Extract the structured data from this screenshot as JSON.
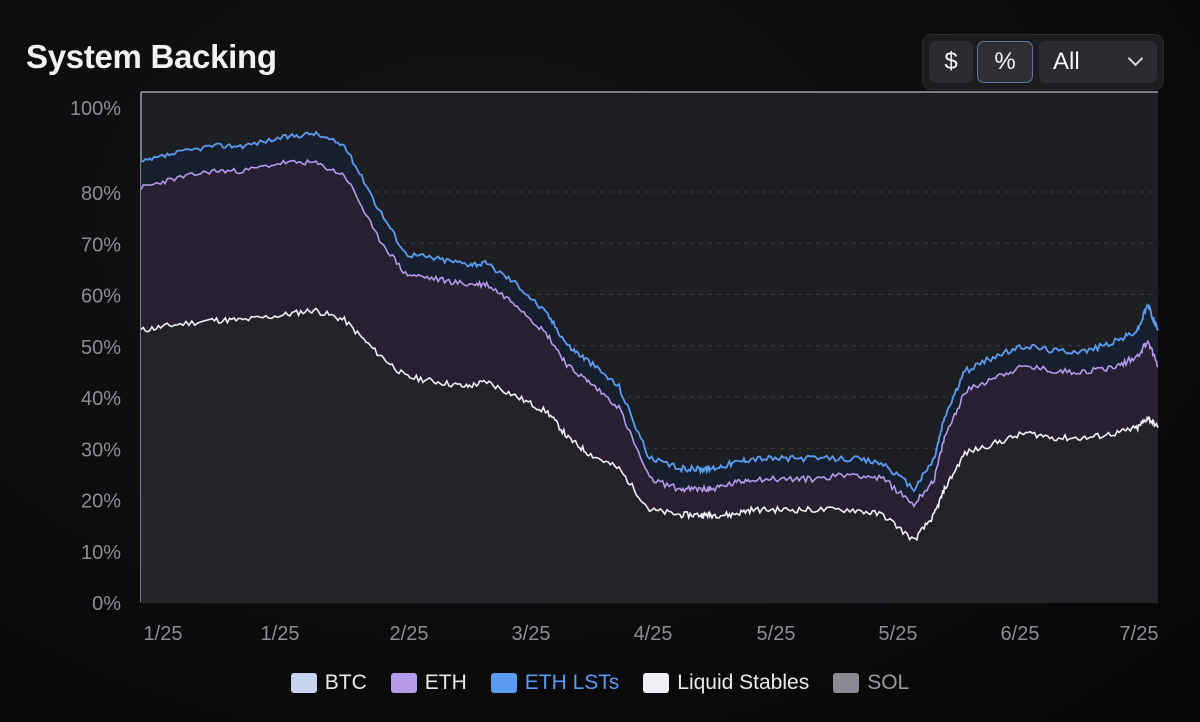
{
  "header": {
    "title": "System Backing",
    "toggle_dollar": "$",
    "toggle_percent": "%",
    "range_select": "All"
  },
  "colors": {
    "btc": "#c6d4f2",
    "eth": "#b49ae8",
    "eth_lsts": "#5b9cf0",
    "liquid_stables": "#eef0f6",
    "sol": "#8a8a92",
    "grid": "#3c3c42",
    "axis_text": "#8d8d95"
  },
  "legend": [
    {
      "label": "BTC",
      "color": "#c6d4f2"
    },
    {
      "label": "ETH",
      "color": "#b49ae8"
    },
    {
      "label": "ETH LSTs",
      "color": "#5b9cf0"
    },
    {
      "label": "Liquid Stables",
      "color": "#eef0f6"
    },
    {
      "label": "SOL",
      "color": "#8a8a92"
    }
  ],
  "chart_data": {
    "type": "area",
    "ylim": [
      0,
      100
    ],
    "y_ticks": [
      "0%",
      "10%",
      "20%",
      "30%",
      "40%",
      "50%",
      "60%",
      "70%",
      "80%",
      "100%"
    ],
    "x_ticks": [
      "1/25",
      "1/25",
      "2/25",
      "3/25",
      "4/25",
      "5/25",
      "5/25",
      "6/25",
      "7/25"
    ],
    "x_range": [
      0,
      100
    ],
    "grid": "horizontal dashed",
    "legend_position": "bottom",
    "series": [
      {
        "name": "Liquid Stables",
        "x": [
          0,
          3,
          7,
          10,
          14,
          17,
          20,
          23,
          26,
          29,
          32,
          34,
          37,
          40,
          42,
          44,
          47,
          50,
          53,
          55,
          56,
          58,
          60,
          63,
          66,
          70,
          73,
          76,
          78,
          79,
          81,
          84,
          87,
          90,
          93,
          96,
          98,
          99,
          100
        ],
        "values": [
          53,
          54,
          55,
          55,
          56,
          57,
          55,
          49,
          44,
          43,
          42,
          43,
          40,
          37,
          32,
          29,
          26,
          18,
          17,
          17,
          17,
          17,
          18,
          18,
          18,
          18,
          17,
          12,
          17,
          22,
          29,
          31,
          33,
          32,
          32,
          33,
          34,
          36,
          34
        ]
      },
      {
        "name": "ETH",
        "x": [
          0,
          3,
          7,
          10,
          14,
          17,
          20,
          23,
          26,
          29,
          32,
          34,
          37,
          40,
          42,
          44,
          47,
          50,
          53,
          55,
          56,
          58,
          60,
          63,
          66,
          70,
          73,
          76,
          78,
          79,
          81,
          84,
          87,
          90,
          93,
          96,
          98,
          99,
          100
        ],
        "values": [
          81,
          83,
          85,
          85,
          87,
          87,
          84,
          72,
          64,
          63,
          62,
          62,
          58,
          52,
          46,
          43,
          38,
          24,
          22,
          22,
          22,
          23,
          24,
          24,
          24,
          25,
          24,
          19,
          24,
          32,
          41,
          44,
          46,
          45,
          45,
          46,
          48,
          51,
          46
        ]
      },
      {
        "name": "ETH LSTs",
        "x": [
          0,
          3,
          7,
          10,
          14,
          17,
          20,
          23,
          26,
          29,
          32,
          34,
          37,
          40,
          42,
          44,
          47,
          50,
          53,
          55,
          56,
          58,
          60,
          63,
          66,
          70,
          73,
          76,
          78,
          79,
          81,
          84,
          87,
          90,
          93,
          96,
          98,
          99,
          100
        ],
        "values": [
          87,
          89,
          91,
          91,
          93,
          94,
          91,
          78,
          68,
          67,
          66,
          66,
          62,
          56,
          50,
          47,
          42,
          28,
          26,
          26,
          26,
          27,
          28,
          28,
          28,
          28,
          27,
          22,
          28,
          36,
          45,
          48,
          50,
          49,
          49,
          51,
          53,
          58,
          53
        ]
      }
    ]
  }
}
